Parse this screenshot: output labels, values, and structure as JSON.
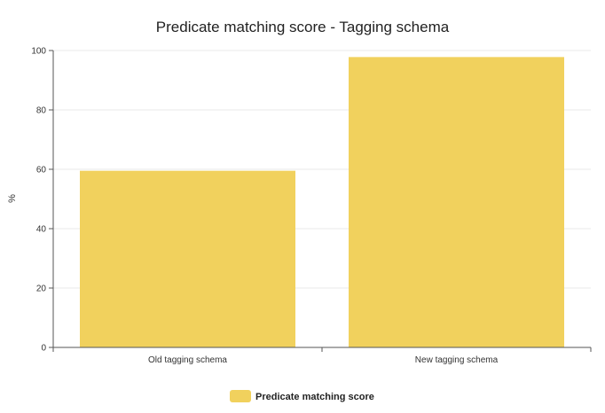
{
  "chart_data": {
    "type": "bar",
    "title": "Predicate matching score - Tagging schema",
    "xlabel": "",
    "ylabel": "%",
    "categories": [
      "Old tagging schema",
      "New tagging schema"
    ],
    "series": [
      {
        "name": "Predicate matching score",
        "values": [
          59.5,
          97.8
        ]
      }
    ],
    "ylim": [
      0,
      100
    ],
    "yticks": [
      "0",
      "20",
      "40",
      "60",
      "80",
      "100"
    ],
    "grid": true,
    "legend": "bottom-center",
    "colors": {
      "bar": "#f1d15d",
      "grid": "#e8e8e8",
      "axis": "#555555"
    }
  }
}
